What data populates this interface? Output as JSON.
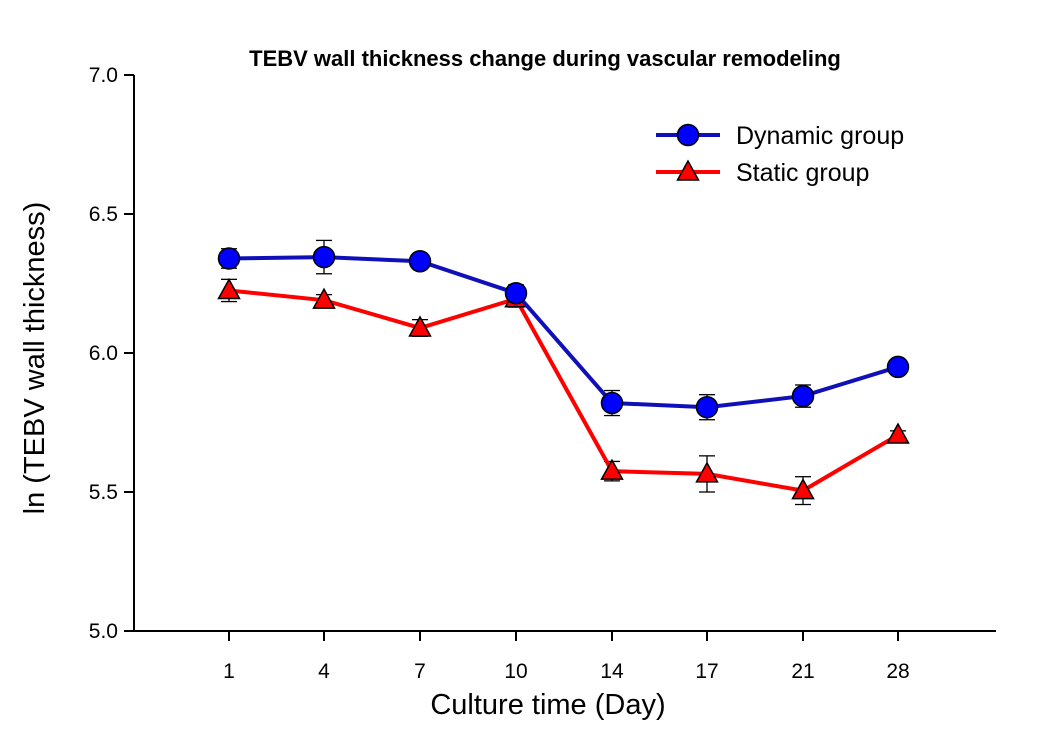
{
  "chart_data": {
    "type": "line",
    "title": "TEBV wall thickness change during vascular remodeling",
    "xlabel": "Culture time (Day)",
    "ylabel": "ln (TEBV wall thickness)",
    "categories": [
      "1",
      "4",
      "7",
      "10",
      "14",
      "17",
      "21",
      "28"
    ],
    "ylim": [
      5.0,
      7.0
    ],
    "yticks": [
      "5.0",
      "5.5",
      "6.0",
      "6.5",
      "7.0"
    ],
    "grid": false,
    "legend_position": "top-right",
    "series": [
      {
        "name": "Dynamic group",
        "marker": "circle",
        "line_color": "#1010b8",
        "marker_color": "#0000ff",
        "values": [
          6.34,
          6.345,
          6.33,
          6.215,
          5.82,
          5.805,
          5.845,
          5.95
        ],
        "errors": [
          0.035,
          0.06,
          0.02,
          0.03,
          0.045,
          0.045,
          0.04,
          0.02
        ]
      },
      {
        "name": "Static group",
        "marker": "triangle",
        "line_color": "#ff0000",
        "marker_color": "#ff0000",
        "values": [
          6.225,
          6.19,
          6.09,
          6.195,
          5.575,
          5.565,
          5.505,
          5.705
        ],
        "errors": [
          0.04,
          0.02,
          0.03,
          0.03,
          0.035,
          0.065,
          0.05,
          0.015
        ]
      }
    ]
  }
}
